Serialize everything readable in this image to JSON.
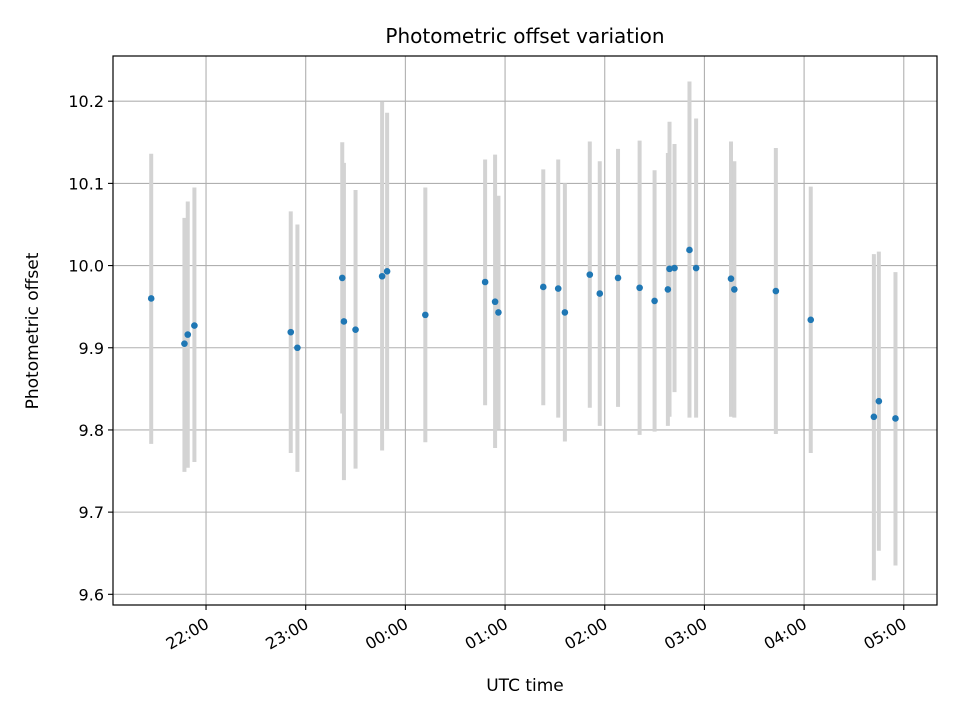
{
  "chart_data": {
    "type": "scatter",
    "title": "Photometric offset variation",
    "xlabel": "UTC time",
    "ylabel": "Photometric offset",
    "x_axis_kind": "time",
    "x_range": [
      "21:04",
      "05:20"
    ],
    "ylim": [
      9.587,
      10.255
    ],
    "grid": true,
    "x_ticks": [
      {
        "t": "22:00",
        "label": "22:00"
      },
      {
        "t": "23:00",
        "label": "23:00"
      },
      {
        "t": "00:00",
        "label": "00:00"
      },
      {
        "t": "01:00",
        "label": "01:00"
      },
      {
        "t": "02:00",
        "label": "02:00"
      },
      {
        "t": "03:00",
        "label": "03:00"
      },
      {
        "t": "04:00",
        "label": "04:00"
      },
      {
        "t": "05:00",
        "label": "05:00"
      }
    ],
    "y_ticks": [
      9.6,
      9.7,
      9.8,
      9.9,
      10.0,
      10.1,
      10.2
    ],
    "y_tick_labels": [
      "9.6",
      "9.7",
      "9.8",
      "9.9",
      "10.0",
      "10.1",
      "10.2"
    ],
    "series": [
      {
        "marker_color": "#1f77b4",
        "errorbar_color": "#d3d3d3",
        "points": [
          {
            "t": "21:27",
            "y": 9.96,
            "lo": 9.783,
            "hi": 10.136
          },
          {
            "t": "21:47",
            "y": 9.905,
            "lo": 9.749,
            "hi": 10.058
          },
          {
            "t": "21:49",
            "y": 9.916,
            "lo": 9.754,
            "hi": 10.078
          },
          {
            "t": "21:53",
            "y": 9.927,
            "lo": 9.761,
            "hi": 10.095
          },
          {
            "t": "22:51",
            "y": 9.919,
            "lo": 9.772,
            "hi": 10.066
          },
          {
            "t": "22:55",
            "y": 9.9,
            "lo": 9.749,
            "hi": 10.05
          },
          {
            "t": "23:22",
            "y": 9.985,
            "lo": 9.82,
            "hi": 10.15
          },
          {
            "t": "23:23",
            "y": 9.932,
            "lo": 9.739,
            "hi": 10.125
          },
          {
            "t": "23:30",
            "y": 9.922,
            "lo": 9.753,
            "hi": 10.092
          },
          {
            "t": "23:46",
            "y": 9.987,
            "lo": 9.775,
            "hi": 10.199
          },
          {
            "t": "23:49",
            "y": 9.993,
            "lo": 9.8,
            "hi": 10.186
          },
          {
            "t": "00:12",
            "y": 9.94,
            "lo": 9.785,
            "hi": 10.095
          },
          {
            "t": "00:48",
            "y": 9.98,
            "lo": 9.83,
            "hi": 10.129
          },
          {
            "t": "00:54",
            "y": 9.956,
            "lo": 9.778,
            "hi": 10.135
          },
          {
            "t": "00:56",
            "y": 9.943,
            "lo": 9.801,
            "hi": 10.085
          },
          {
            "t": "01:23",
            "y": 9.974,
            "lo": 9.83,
            "hi": 10.117
          },
          {
            "t": "01:32",
            "y": 9.972,
            "lo": 9.815,
            "hi": 10.129
          },
          {
            "t": "01:36",
            "y": 9.943,
            "lo": 9.786,
            "hi": 10.1
          },
          {
            "t": "01:51",
            "y": 9.989,
            "lo": 9.827,
            "hi": 10.151
          },
          {
            "t": "01:57",
            "y": 9.966,
            "lo": 9.805,
            "hi": 10.127
          },
          {
            "t": "02:08",
            "y": 9.985,
            "lo": 9.828,
            "hi": 10.142
          },
          {
            "t": "02:21",
            "y": 9.973,
            "lo": 9.794,
            "hi": 10.152
          },
          {
            "t": "02:30",
            "y": 9.957,
            "lo": 9.798,
            "hi": 10.116
          },
          {
            "t": "02:38",
            "y": 9.971,
            "lo": 9.805,
            "hi": 10.137
          },
          {
            "t": "02:39",
            "y": 9.996,
            "lo": 9.816,
            "hi": 10.175
          },
          {
            "t": "02:42",
            "y": 9.997,
            "lo": 9.846,
            "hi": 10.148
          },
          {
            "t": "02:51",
            "y": 10.019,
            "lo": 9.815,
            "hi": 10.224
          },
          {
            "t": "02:55",
            "y": 9.997,
            "lo": 9.815,
            "hi": 10.179
          },
          {
            "t": "03:16",
            "y": 9.984,
            "lo": 9.816,
            "hi": 10.151
          },
          {
            "t": "03:18",
            "y": 9.971,
            "lo": 9.815,
            "hi": 10.127
          },
          {
            "t": "03:43",
            "y": 9.969,
            "lo": 9.795,
            "hi": 10.143
          },
          {
            "t": "04:04",
            "y": 9.934,
            "lo": 9.772,
            "hi": 10.096
          },
          {
            "t": "04:42",
            "y": 9.816,
            "lo": 9.617,
            "hi": 10.014
          },
          {
            "t": "04:45",
            "y": 9.835,
            "lo": 9.653,
            "hi": 10.017
          },
          {
            "t": "04:55",
            "y": 9.814,
            "lo": 9.635,
            "hi": 9.992
          }
        ]
      }
    ]
  }
}
